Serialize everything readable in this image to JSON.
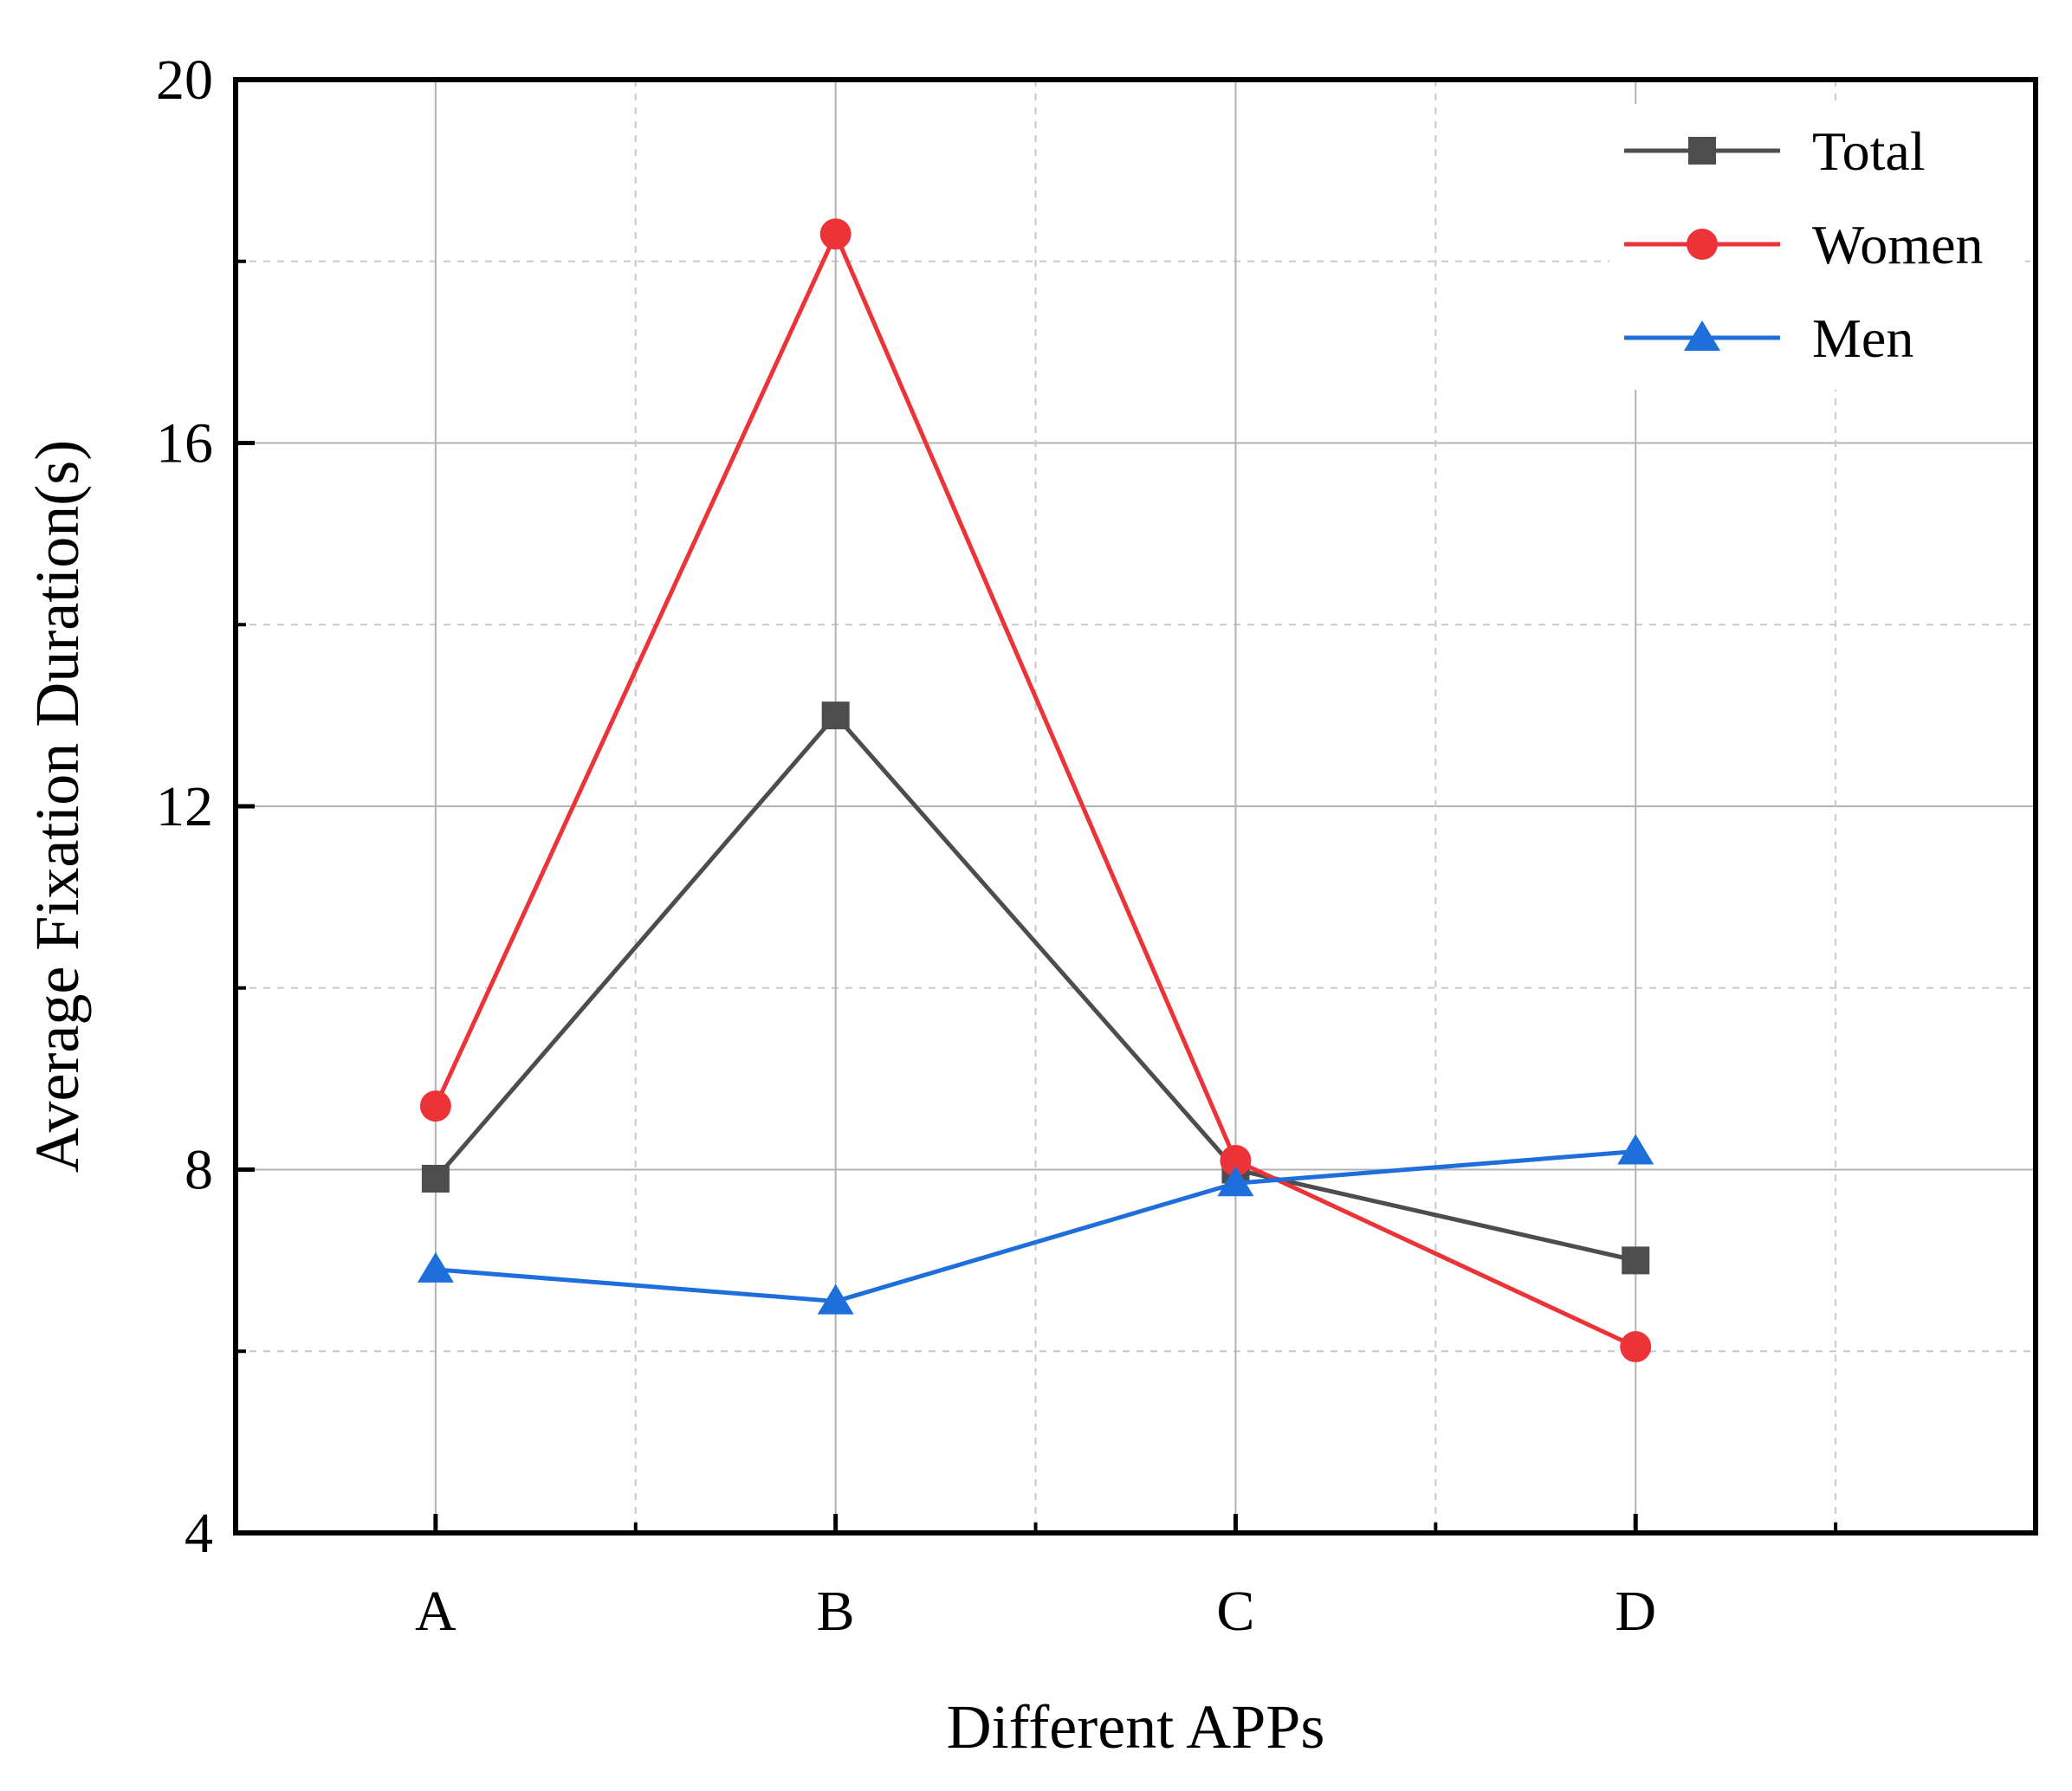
{
  "chart_data": {
    "type": "line",
    "title": "",
    "xlabel": "Different APPs",
    "ylabel": "Average Fixation Duration(s)",
    "categories": [
      "A",
      "B",
      "C",
      "D"
    ],
    "ylim": [
      4,
      20
    ],
    "yticks": [
      4,
      8,
      12,
      16,
      20
    ],
    "yticks_minor": [
      6,
      10,
      14,
      18
    ],
    "grid": true,
    "legend_position": "top-right",
    "series": [
      {
        "name": "Total",
        "marker": "square",
        "color": "#4d4d4d",
        "values": [
          7.9,
          13.0,
          8.0,
          7.0
        ]
      },
      {
        "name": "Women",
        "marker": "circle",
        "color": "#ec3338",
        "values": [
          8.7,
          18.3,
          8.1,
          6.05
        ]
      },
      {
        "name": "Men",
        "marker": "triangle",
        "color": "#1e6fdc",
        "values": [
          6.9,
          6.55,
          7.85,
          8.2
        ]
      }
    ]
  }
}
